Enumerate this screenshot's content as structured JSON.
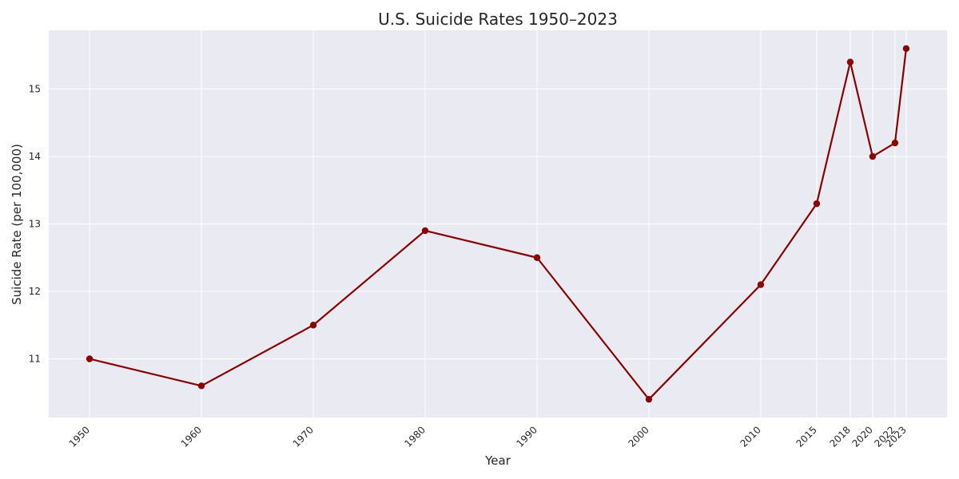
{
  "chart_data": {
    "type": "line",
    "title": "U.S. Suicide Rates 1950–2023",
    "xlabel": "Year",
    "ylabel": "Suicide Rate (per 100,000)",
    "x": [
      1950,
      1960,
      1970,
      1980,
      1990,
      2000,
      2010,
      2015,
      2018,
      2020,
      2022,
      2023
    ],
    "y": [
      11.0,
      10.6,
      11.5,
      12.9,
      12.5,
      10.4,
      12.1,
      13.3,
      15.4,
      14.0,
      14.2,
      15.6
    ],
    "x_tick_labels": [
      "1950",
      "1960",
      "1970",
      "1980",
      "1990",
      "2000",
      "2010",
      "2015",
      "2018",
      "2020",
      "2022",
      "2023"
    ],
    "y_ticks": [
      11,
      12,
      13,
      14,
      15
    ],
    "y_tick_labels": [
      "11",
      "12",
      "13",
      "14",
      "15"
    ],
    "xlim": [
      1946.35,
      2026.65
    ],
    "ylim": [
      10.13,
      15.87
    ],
    "grid": true,
    "legend": "none",
    "colors": {
      "line": "#8b0000",
      "plot_background": "#eaeaf2",
      "grid": "#ffffff"
    }
  }
}
